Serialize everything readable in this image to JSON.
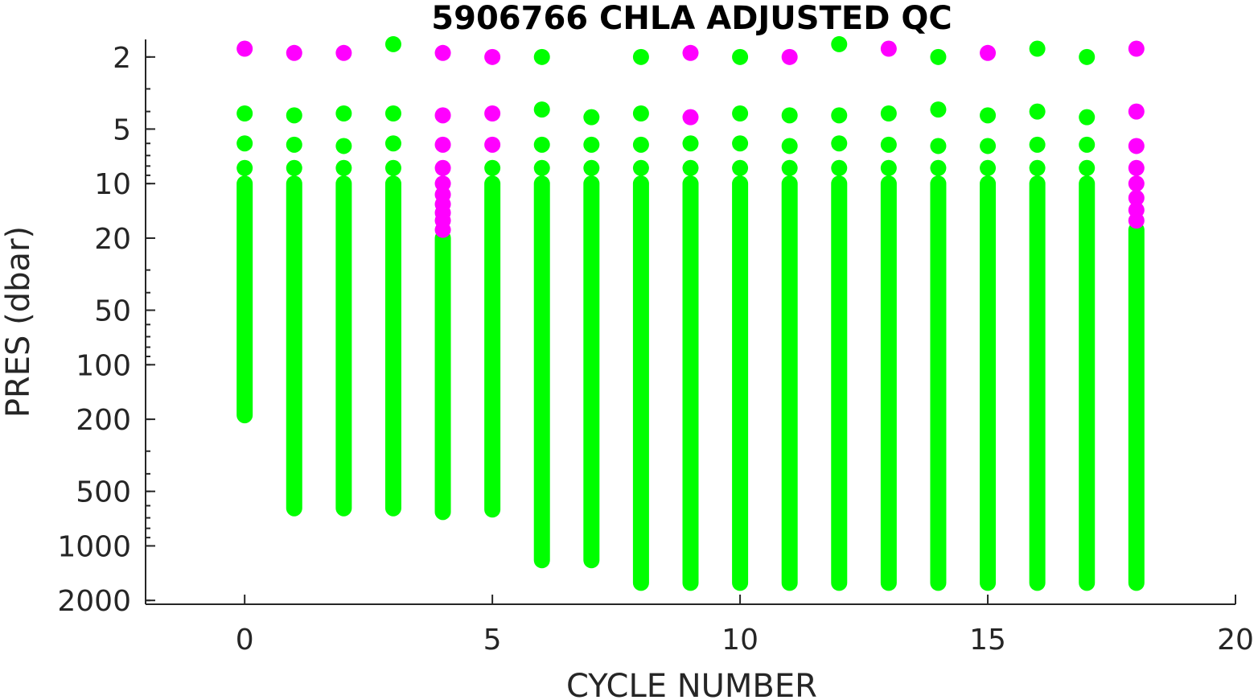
{
  "chart_data": {
    "type": "scatter",
    "title": "5906766  CHLA ADJUSTED QC",
    "xlabel": "CYCLE NUMBER",
    "ylabel": "PRES (dbar)",
    "xlim": [
      -2,
      20
    ],
    "ylim": [
      1.6,
      2100
    ],
    "y_scale": "log",
    "y_reversed": true,
    "x_ticks": [
      0,
      5,
      10,
      15,
      20
    ],
    "y_ticks": [
      2,
      5,
      10,
      20,
      50,
      100,
      200,
      500,
      1000,
      2000
    ],
    "grid": false,
    "legend": "none",
    "colors": {
      "qc_good": "#00ff00",
      "qc_flagged": "#ff00ff"
    },
    "series": [
      {
        "qc": "good",
        "color": "#00ff00",
        "profiles": [
          {
            "cycle": 0,
            "surface_points": [
              4.1,
              6.0,
              8.2
            ],
            "pmin": 10,
            "pmax": 190
          },
          {
            "cycle": 1,
            "surface_points": [
              4.2,
              6.1,
              8.2
            ],
            "pmin": 10,
            "pmax": 620
          },
          {
            "cycle": 2,
            "surface_points": [
              4.1,
              6.2,
              8.2
            ],
            "pmin": 10,
            "pmax": 620
          },
          {
            "cycle": 3,
            "surface_points": [
              1.7,
              4.1,
              6.0,
              8.2
            ],
            "pmin": 10,
            "pmax": 620
          },
          {
            "cycle": 4,
            "surface_points": [],
            "pmin": 20,
            "pmax": 650
          },
          {
            "cycle": 5,
            "surface_points": [
              8.2
            ],
            "pmin": 10,
            "pmax": 630
          },
          {
            "cycle": 6,
            "surface_points": [
              2.0,
              3.9,
              6.1,
              8.2
            ],
            "pmin": 10,
            "pmax": 1200
          },
          {
            "cycle": 7,
            "surface_points": [
              4.3,
              6.1,
              8.2
            ],
            "pmin": 10,
            "pmax": 1200
          },
          {
            "cycle": 8,
            "surface_points": [
              2.0,
              4.1,
              6.1,
              8.2
            ],
            "pmin": 10,
            "pmax": 1600
          },
          {
            "cycle": 9,
            "surface_points": [
              6.0,
              8.2
            ],
            "pmin": 10,
            "pmax": 1600
          },
          {
            "cycle": 10,
            "surface_points": [
              2.0,
              4.1,
              6.0,
              8.2
            ],
            "pmin": 10,
            "pmax": 1600
          },
          {
            "cycle": 11,
            "surface_points": [
              4.2,
              6.2,
              8.2
            ],
            "pmin": 10,
            "pmax": 1600
          },
          {
            "cycle": 12,
            "surface_points": [
              1.7,
              4.2,
              6.0,
              8.2
            ],
            "pmin": 10,
            "pmax": 1600
          },
          {
            "cycle": 13,
            "surface_points": [
              4.1,
              6.1,
              8.2
            ],
            "pmin": 10,
            "pmax": 1600
          },
          {
            "cycle": 14,
            "surface_points": [
              2.0,
              3.9,
              6.2,
              8.2
            ],
            "pmin": 10,
            "pmax": 1600
          },
          {
            "cycle": 15,
            "surface_points": [
              4.2,
              6.2,
              8.2
            ],
            "pmin": 10,
            "pmax": 1600
          },
          {
            "cycle": 16,
            "surface_points": [
              1.8,
              4.0,
              6.1,
              8.2
            ],
            "pmin": 10,
            "pmax": 1600
          },
          {
            "cycle": 17,
            "surface_points": [
              2.0,
              4.3,
              6.1,
              8.2
            ],
            "pmin": 10,
            "pmax": 1600
          },
          {
            "cycle": 18,
            "surface_points": [],
            "pmin": 18,
            "pmax": 1600
          }
        ]
      },
      {
        "qc": "flagged",
        "color": "#ff00ff",
        "points": [
          [
            0,
            1.8
          ],
          [
            1,
            1.9
          ],
          [
            2,
            1.9
          ],
          [
            4,
            1.9
          ],
          [
            4,
            4.2
          ],
          [
            4,
            6.1
          ],
          [
            4,
            8.2
          ],
          [
            4,
            10
          ],
          [
            4,
            11.5
          ],
          [
            4,
            13
          ],
          [
            4,
            14.5
          ],
          [
            4,
            16
          ],
          [
            4,
            18
          ],
          [
            5,
            2.0
          ],
          [
            5,
            4.1
          ],
          [
            5,
            6.1
          ],
          [
            9,
            1.9
          ],
          [
            9,
            4.3
          ],
          [
            11,
            2.0
          ],
          [
            13,
            1.8
          ],
          [
            15,
            1.9
          ],
          [
            18,
            1.8
          ],
          [
            18,
            4.0
          ],
          [
            18,
            6.2
          ],
          [
            18,
            8.2
          ],
          [
            18,
            10
          ],
          [
            18,
            12
          ],
          [
            18,
            14
          ],
          [
            18,
            16
          ]
        ]
      }
    ]
  }
}
